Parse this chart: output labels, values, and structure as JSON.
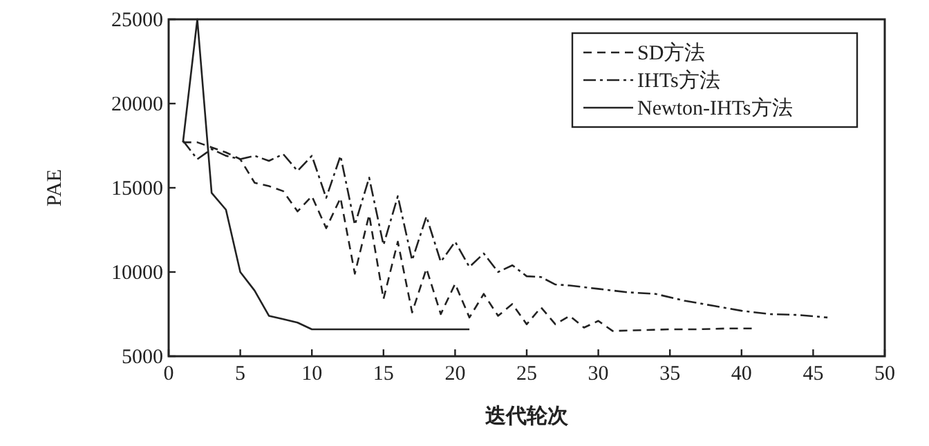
{
  "chart_data": {
    "type": "line",
    "xlabel": "迭代轮次",
    "ylabel": "PAE",
    "xlim": [
      0,
      50
    ],
    "ylim": [
      5000,
      25000
    ],
    "xticks": [
      0,
      5,
      10,
      15,
      20,
      25,
      30,
      35,
      40,
      45,
      50
    ],
    "yticks": [
      5000,
      10000,
      15000,
      20000,
      25000
    ],
    "legend": "top right",
    "series": [
      {
        "name": "SD方法",
        "color": "#222222",
        "line_style": "dashed",
        "x": [
          1,
          2,
          3,
          4,
          5,
          6,
          7,
          8,
          9,
          10,
          11,
          12,
          13,
          14,
          15,
          16,
          17,
          18,
          19,
          20,
          21,
          22,
          23,
          24,
          25,
          26,
          27,
          28,
          29,
          30,
          31,
          33,
          35,
          37,
          39,
          41
        ],
        "values": [
          17700,
          17700,
          17400,
          17100,
          16700,
          15300,
          15100,
          14800,
          13600,
          14500,
          12600,
          14400,
          9900,
          13400,
          8400,
          11800,
          7600,
          10200,
          7500,
          9300,
          7300,
          8700,
          7400,
          8100,
          6900,
          7900,
          6900,
          7400,
          6700,
          7100,
          6500,
          6550,
          6600,
          6600,
          6650,
          6650
        ]
      },
      {
        "name": "IHTs方法",
        "color": "#222222",
        "line_style": "dashdot",
        "x": [
          1,
          2,
          3,
          4,
          5,
          6,
          7,
          8,
          9,
          10,
          11,
          12,
          13,
          14,
          15,
          16,
          17,
          18,
          19,
          20,
          21,
          22,
          23,
          24,
          25,
          26,
          27,
          28,
          30,
          32,
          34,
          36,
          38,
          40,
          42,
          44,
          46
        ],
        "values": [
          17800,
          16700,
          17300,
          16900,
          16700,
          16900,
          16600,
          17000,
          16000,
          16900,
          14400,
          16900,
          12800,
          15600,
          11600,
          14500,
          10700,
          13300,
          10600,
          11800,
          10300,
          11100,
          10000,
          10400,
          9750,
          9700,
          9260,
          9200,
          9000,
          8800,
          8700,
          8300,
          8000,
          7700,
          7500,
          7450,
          7300
        ]
      },
      {
        "name": "Newton-IHTs方法",
        "color": "#222222",
        "line_style": "solid",
        "x": [
          1,
          2,
          3,
          4,
          5,
          6,
          7,
          8,
          9,
          10,
          12,
          14,
          16,
          18,
          21
        ],
        "values": [
          17700,
          25000,
          14700,
          13700,
          10000,
          8900,
          7400,
          7200,
          7000,
          6600,
          6600,
          6600,
          6600,
          6600,
          6600
        ]
      }
    ]
  }
}
